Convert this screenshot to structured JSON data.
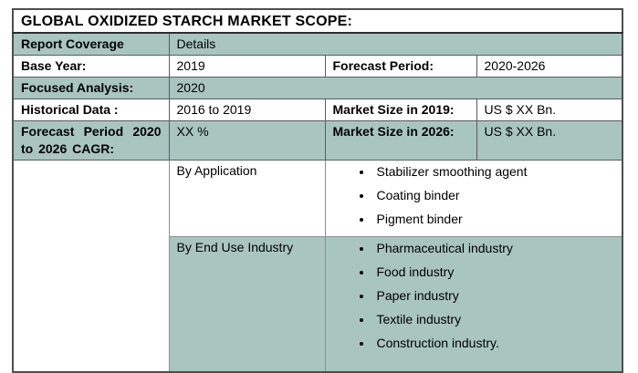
{
  "colors": {
    "shaded_row": "#a9c5c0",
    "plain_row": "#ffffff",
    "border": "#5c5c5c",
    "text": "#000000"
  },
  "table": {
    "title": "GLOBAL OXIDIZED STARCH MARKET SCOPE:",
    "header": {
      "label": "Report Coverage",
      "value": "Details"
    },
    "base_year": {
      "label": "Base Year:",
      "value": "2019"
    },
    "forecast_period": {
      "label": "Forecast Period:",
      "value": "2020-2026"
    },
    "focused_analysis": {
      "label": "Focused Analysis:",
      "value": "2020"
    },
    "historical_data": {
      "label": "Historical Data :",
      "value": "2016 to 2019"
    },
    "market_size_2019": {
      "label": "Market Size in 2019:",
      "value": "US $ XX Bn."
    },
    "forecast_cagr": {
      "label": "Forecast Period 2020 to 2026 CAGR:",
      "value": "XX %"
    },
    "market_size_2026": {
      "label": "Market Size in 2026:",
      "value": "US $ XX Bn."
    },
    "by_application": {
      "label": "By Application",
      "items": [
        "Stabilizer smoothing agent",
        "Coating binder",
        "Pigment binder"
      ]
    },
    "by_end_use": {
      "label": "By End Use Industry",
      "items": [
        "Pharmaceutical industry",
        "Food industry",
        "Paper industry",
        "Textile industry",
        "Construction industry."
      ]
    }
  }
}
